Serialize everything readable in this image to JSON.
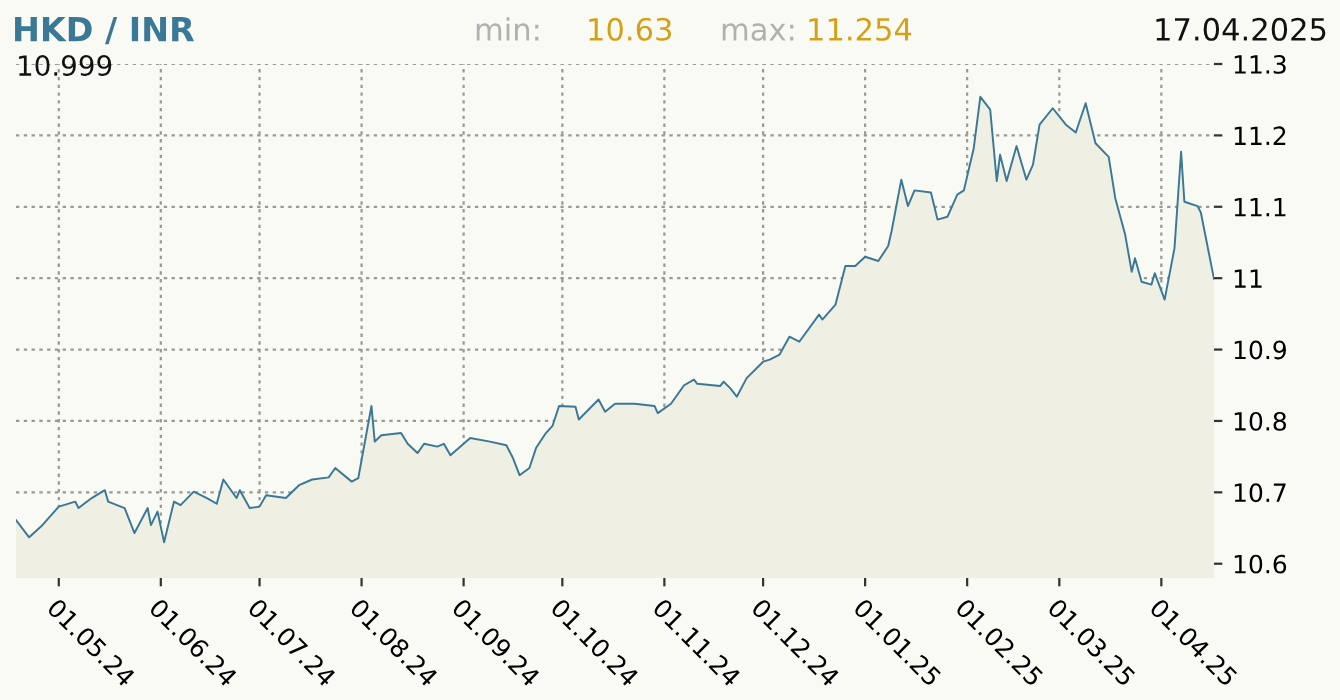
{
  "chart_data": {
    "type": "area",
    "title": "HKD / INR",
    "annotations": [
      "min:",
      "10.63",
      "max:",
      "11.254",
      "17.04.2025",
      "10.999"
    ],
    "series": [
      {
        "color": "#3a7896",
        "x": [
          "2024-04-18",
          "2024-04-22",
          "2024-04-26",
          "2024-05-01",
          "2024-05-06",
          "2024-05-07",
          "2024-05-11",
          "2024-05-15",
          "2024-05-16",
          "2024-05-21",
          "2024-05-24",
          "2024-05-28",
          "2024-05-29",
          "2024-05-31",
          "2024-06-02",
          "2024-06-05",
          "2024-06-07",
          "2024-06-11",
          "2024-06-15",
          "2024-06-18",
          "2024-06-20",
          "2024-06-24",
          "2024-06-25",
          "2024-06-28",
          "2024-07-01",
          "2024-07-03",
          "2024-07-09",
          "2024-07-13",
          "2024-07-17",
          "2024-07-22",
          "2024-07-24",
          "2024-07-29",
          "2024-07-31",
          "2024-08-04",
          "2024-08-05",
          "2024-08-07",
          "2024-08-13",
          "2024-08-15",
          "2024-08-18",
          "2024-08-20",
          "2024-08-24",
          "2024-08-26",
          "2024-08-28",
          "2024-09-03",
          "2024-09-09",
          "2024-09-14",
          "2024-09-16",
          "2024-09-18",
          "2024-09-21",
          "2024-09-23",
          "2024-09-26",
          "2024-09-28",
          "2024-09-30",
          "2024-10-05",
          "2024-10-06",
          "2024-10-12",
          "2024-10-14",
          "2024-10-17",
          "2024-10-23",
          "2024-10-29",
          "2024-10-30",
          "2024-11-03",
          "2024-11-07",
          "2024-11-10",
          "2024-11-11",
          "2024-11-18",
          "2024-11-19",
          "2024-11-21",
          "2024-11-23",
          "2024-11-26",
          "2024-12-01",
          "2024-12-03",
          "2024-12-06",
          "2024-12-09",
          "2024-12-12",
          "2024-12-18",
          "2024-12-19",
          "2024-12-23",
          "2024-12-26",
          "2024-12-29",
          "2025-01-01",
          "2025-01-05",
          "2025-01-08",
          "2025-01-09",
          "2025-01-12",
          "2025-01-14",
          "2025-01-16",
          "2025-01-21",
          "2025-01-23",
          "2025-01-26",
          "2025-01-29",
          "2025-01-31",
          "2025-02-03",
          "2025-02-05",
          "2025-02-08",
          "2025-02-10",
          "2025-02-11",
          "2025-02-13",
          "2025-02-16",
          "2025-02-19",
          "2025-02-21",
          "2025-02-23",
          "2025-02-27",
          "2025-03-03",
          "2025-03-06",
          "2025-03-09",
          "2025-03-12",
          "2025-03-16",
          "2025-03-18",
          "2025-03-21",
          "2025-03-23",
          "2025-03-24",
          "2025-03-26",
          "2025-03-29",
          "2025-03-30",
          "2025-04-02",
          "2025-04-05",
          "2025-04-07",
          "2025-04-08",
          "2025-04-12",
          "2025-04-13",
          "2025-04-17"
        ],
        "values": [
          10.661,
          10.637,
          10.654,
          10.68,
          10.687,
          10.678,
          10.692,
          10.703,
          10.687,
          10.678,
          10.643,
          10.678,
          10.654,
          10.673,
          10.63,
          10.687,
          10.682,
          10.701,
          10.692,
          10.684,
          10.718,
          10.692,
          10.703,
          10.678,
          10.68,
          10.696,
          10.692,
          10.71,
          10.718,
          10.721,
          10.734,
          10.715,
          10.72,
          10.821,
          10.771,
          10.78,
          10.783,
          10.768,
          10.755,
          10.768,
          10.764,
          10.768,
          10.752,
          10.776,
          10.771,
          10.766,
          10.748,
          10.724,
          10.734,
          10.762,
          10.783,
          10.793,
          10.821,
          10.82,
          10.802,
          10.83,
          10.813,
          10.824,
          10.824,
          10.821,
          10.811,
          10.824,
          10.85,
          10.858,
          10.852,
          10.849,
          10.855,
          10.846,
          10.834,
          10.86,
          10.883,
          10.886,
          10.893,
          10.918,
          10.911,
          10.949,
          10.942,
          10.963,
          11.017,
          11.017,
          11.03,
          11.024,
          11.045,
          11.065,
          11.138,
          11.101,
          11.123,
          11.12,
          11.082,
          11.086,
          11.117,
          11.123,
          11.182,
          11.254,
          11.236,
          11.136,
          11.173,
          11.136,
          11.185,
          11.138,
          11.159,
          11.215,
          11.238,
          11.215,
          11.204,
          11.245,
          11.189,
          11.17,
          11.112,
          11.061,
          11.009,
          11.028,
          10.995,
          10.991,
          11.007,
          10.97,
          11.042,
          11.177,
          11.107,
          11.101,
          11.092,
          10.999
        ]
      }
    ],
    "xlim": [
      "2024-04-18",
      "2025-04-17"
    ],
    "xticks": [
      {
        "value": "2024-05-01",
        "label": "01.05.24"
      },
      {
        "value": "2024-06-01",
        "label": "01.06.24"
      },
      {
        "value": "2024-07-01",
        "label": "01.07.24"
      },
      {
        "value": "2024-08-01",
        "label": "01.08.24"
      },
      {
        "value": "2024-09-01",
        "label": "01.09.24"
      },
      {
        "value": "2024-10-01",
        "label": "01.10.24"
      },
      {
        "value": "2024-11-01",
        "label": "01.11.24"
      },
      {
        "value": "2024-12-01",
        "label": "01.12.24"
      },
      {
        "value": "2025-01-01",
        "label": "01.01.25"
      },
      {
        "value": "2025-02-01",
        "label": "01.02.25"
      },
      {
        "value": "2025-03-01",
        "label": "01.03.25"
      },
      {
        "value": "2025-04-01",
        "label": "01.04.25"
      }
    ],
    "ylim": [
      10.58,
      11.3
    ],
    "yticks": [
      10.6,
      10.7,
      10.8,
      10.9,
      11,
      11.1,
      11.2,
      11.3
    ],
    "grid": true,
    "legend": false
  }
}
